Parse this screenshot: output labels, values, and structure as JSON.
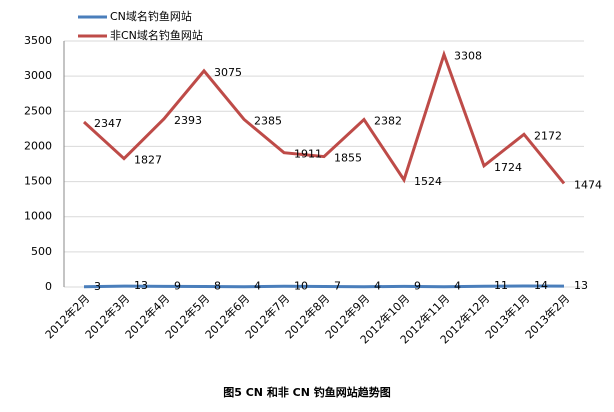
{
  "chart_data": {
    "type": "line",
    "title": "图5 CN 和非 CN 钓鱼网站趋势图",
    "categories": [
      "2012年2月",
      "2012年3月",
      "2012年4月",
      "2012年5月",
      "2012年6月",
      "2012年7月",
      "2012年8月",
      "2012年9月",
      "2012年10月",
      "2012年11月",
      "2012年12月",
      "2013年1月",
      "2013年2月"
    ],
    "series": [
      {
        "name": "CN域名钓鱼网站",
        "color": "#4a7ebb",
        "values": [
          3,
          13,
          9,
          8,
          4,
          10,
          7,
          4,
          9,
          4,
          11,
          14,
          13
        ]
      },
      {
        "name": "非CN域名钓鱼网站",
        "color": "#be4b48",
        "values": [
          2347,
          1827,
          2393,
          3075,
          2385,
          1911,
          1855,
          2382,
          1524,
          3308,
          1724,
          2172,
          1474
        ]
      }
    ],
    "ylim": [
      0,
      3500
    ],
    "yticks": [
      0,
      500,
      1000,
      1500,
      2000,
      2500,
      3000,
      3500
    ],
    "grid": true,
    "legend": "top-left"
  }
}
